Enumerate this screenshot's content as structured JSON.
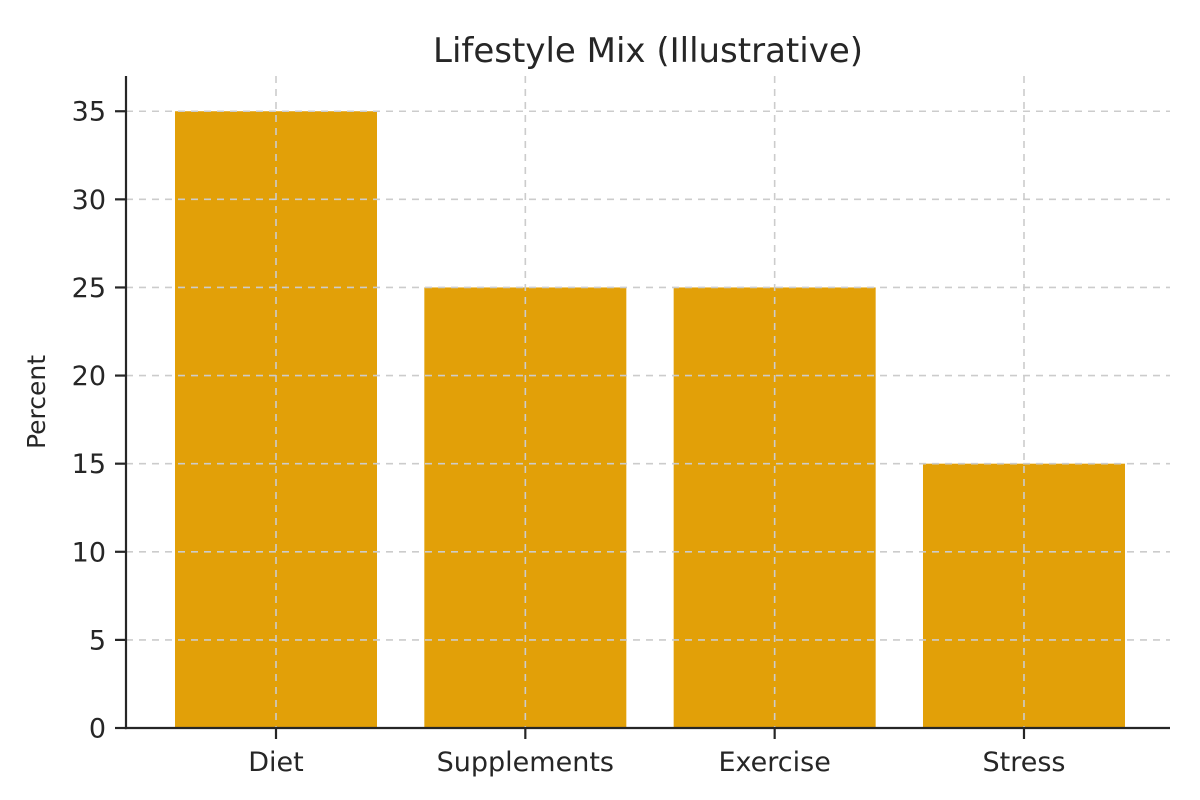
{
  "chart_data": {
    "type": "bar",
    "title": "Lifestyle Mix (Illustrative)",
    "categories": [
      "Diet",
      "Supplements",
      "Exercise",
      "Stress"
    ],
    "values": [
      35,
      25,
      25,
      15
    ],
    "xlabel": "",
    "ylabel": "Percent",
    "ylim": [
      0,
      37
    ],
    "yticks": [
      0,
      5,
      10,
      15,
      20,
      25,
      30,
      35
    ],
    "bar_color": "#E2A008",
    "axis_color": "#262626",
    "text_color": "#262626",
    "grid": {
      "visible": true,
      "color": "#CCCCCC",
      "style": "dashed",
      "above_bars": true,
      "x_grid": true,
      "y_grid": true
    },
    "legend_position": "none"
  }
}
